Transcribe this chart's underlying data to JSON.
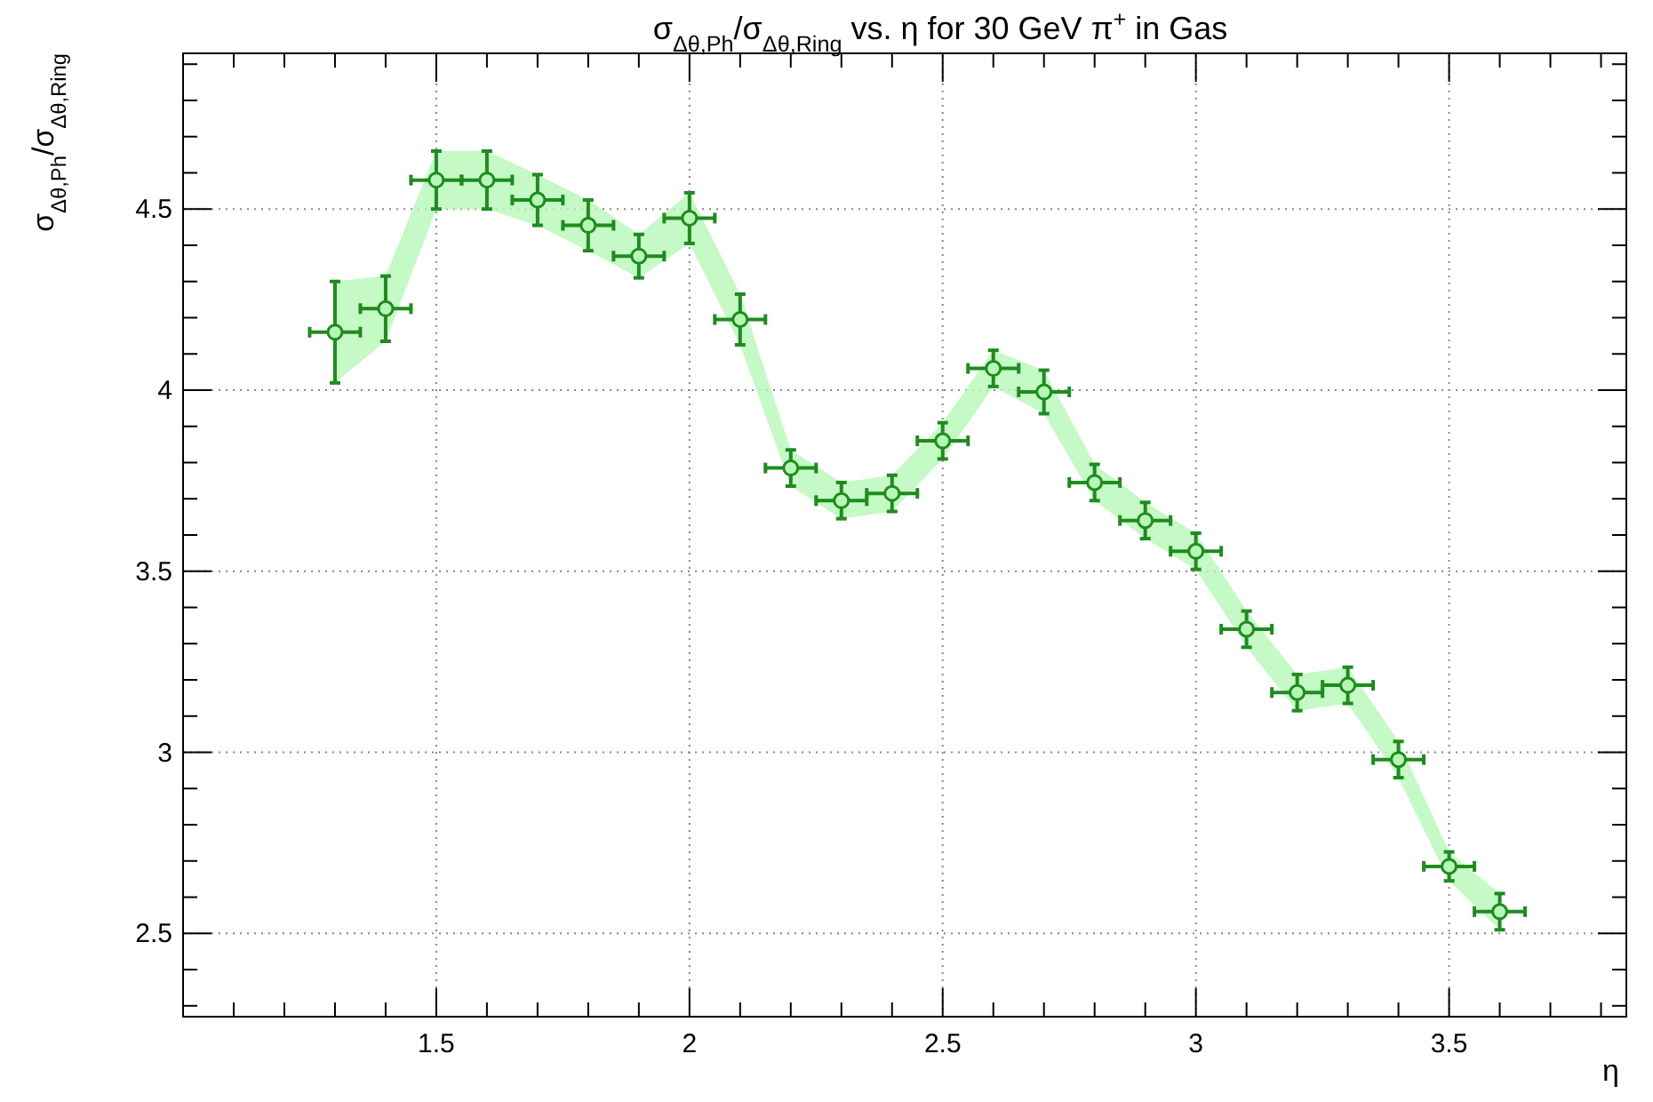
{
  "chart_data": {
    "type": "scatter",
    "title": "σ$_{Δθ,Ph}$/σ$_{Δθ,Ring}$ vs. η for 30 GeV π$^{+}$ in Gas",
    "xlabel": "η",
    "ylabel": "σ$_{Δθ,Ph}$/σ$_{Δθ,Ring}$",
    "xlim": [
      1.0,
      3.85
    ],
    "ylim": [
      2.27,
      4.93
    ],
    "xticks": [
      {
        "value": 1.1,
        "label": null
      },
      {
        "value": 1.2,
        "label": null
      },
      {
        "value": 1.3,
        "label": null
      },
      {
        "value": 1.4,
        "label": null
      },
      1.5,
      {
        "value": 1.6,
        "label": null
      },
      {
        "value": 1.7,
        "label": null
      },
      {
        "value": 1.8,
        "label": null
      },
      {
        "value": 1.9,
        "label": null
      },
      2,
      {
        "value": 2.1,
        "label": null
      },
      {
        "value": 2.2,
        "label": null
      },
      {
        "value": 2.3,
        "label": null
      },
      {
        "value": 2.4,
        "label": null
      },
      2.5,
      {
        "value": 2.6,
        "label": null
      },
      {
        "value": 2.7,
        "label": null
      },
      {
        "value": 2.8,
        "label": null
      },
      {
        "value": 2.9,
        "label": null
      },
      3,
      {
        "value": 3.1,
        "label": null
      },
      {
        "value": 3.2,
        "label": null
      },
      {
        "value": 3.3,
        "label": null
      },
      {
        "value": 3.4,
        "label": null
      },
      3.5,
      {
        "value": 3.6,
        "label": null
      },
      {
        "value": 3.7,
        "label": null
      },
      {
        "value": 3.8,
        "label": null
      }
    ],
    "yticks": [
      {
        "value": 2.3,
        "label": null
      },
      {
        "value": 2.4,
        "label": null
      },
      2.5,
      {
        "value": 2.6,
        "label": null
      },
      {
        "value": 2.7,
        "label": null
      },
      {
        "value": 2.8,
        "label": null
      },
      {
        "value": 2.9,
        "label": null
      },
      3,
      {
        "value": 3.1,
        "label": null
      },
      {
        "value": 3.2,
        "label": null
      },
      {
        "value": 3.3,
        "label": null
      },
      {
        "value": 3.4,
        "label": null
      },
      3.5,
      {
        "value": 3.6,
        "label": null
      },
      {
        "value": 3.7,
        "label": null
      },
      {
        "value": 3.8,
        "label": null
      },
      {
        "value": 3.9,
        "label": null
      },
      4,
      {
        "value": 4.1,
        "label": null
      },
      {
        "value": 4.2,
        "label": null
      },
      {
        "value": 4.3,
        "label": null
      },
      {
        "value": 4.4,
        "label": null
      },
      4.5,
      {
        "value": 4.6,
        "label": null
      },
      {
        "value": 4.7,
        "label": null
      },
      {
        "value": 4.8,
        "label": null
      },
      {
        "value": 4.9,
        "label": null
      }
    ],
    "grid": true,
    "marker": "circle",
    "series": [
      {
        "color": "#1e8c1e",
        "x": [
          1.3,
          1.4,
          1.5,
          1.6,
          1.7,
          1.8,
          1.9,
          2.0,
          2.1,
          2.2,
          2.3,
          2.4,
          2.5,
          2.6,
          2.7,
          2.8,
          2.9,
          3.0,
          3.1,
          3.2,
          3.3,
          3.4,
          3.5,
          3.6
        ],
        "values": [
          4.16,
          4.225,
          4.58,
          4.58,
          4.525,
          4.455,
          4.37,
          4.475,
          4.195,
          3.785,
          3.695,
          3.715,
          3.86,
          4.06,
          3.995,
          3.745,
          3.64,
          3.555,
          3.34,
          3.165,
          3.185,
          2.98,
          2.685,
          2.56
        ],
        "errors": [
          0.14,
          0.09,
          0.08,
          0.08,
          0.07,
          0.07,
          0.06,
          0.07,
          0.07,
          0.05,
          0.05,
          0.05,
          0.05,
          0.05,
          0.06,
          0.05,
          0.05,
          0.05,
          0.05,
          0.05,
          0.05,
          0.05,
          0.04,
          0.05
        ],
        "xerrors": [
          0.05,
          0.05,
          0.05,
          0.05,
          0.05,
          0.05,
          0.05,
          0.05,
          0.05,
          0.05,
          0.05,
          0.05,
          0.05,
          0.05,
          0.05,
          0.05,
          0.05,
          0.05,
          0.05,
          0.05,
          0.05,
          0.05,
          0.05,
          0.05
        ],
        "lower": [
          4.02,
          4.135,
          4.5,
          4.5,
          4.455,
          4.385,
          4.31,
          4.405,
          4.125,
          3.735,
          3.645,
          3.665,
          3.81,
          4.01,
          3.935,
          3.695,
          3.59,
          3.505,
          3.29,
          3.115,
          3.135,
          2.93,
          2.645,
          2.51
        ],
        "upper": [
          4.3,
          4.315,
          4.66,
          4.66,
          4.595,
          4.525,
          4.43,
          4.545,
          4.265,
          3.835,
          3.745,
          3.765,
          3.91,
          4.11,
          4.055,
          3.795,
          3.69,
          3.605,
          3.39,
          3.215,
          3.235,
          3.03,
          2.725,
          2.61
        ]
      }
    ]
  }
}
